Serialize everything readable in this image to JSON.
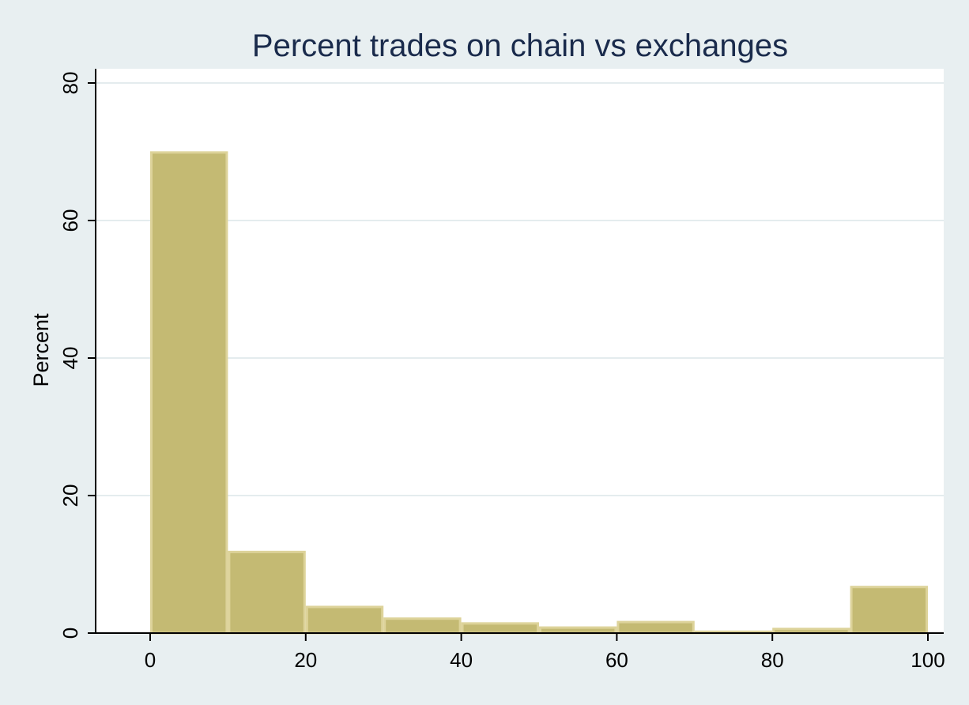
{
  "chart_data": {
    "type": "bar",
    "title": "Percent trades on chain vs exchanges",
    "xlabel": "",
    "ylabel": "Percent",
    "xlim": [
      -7,
      103
    ],
    "ylim": [
      0,
      80
    ],
    "xticks": [
      0,
      20,
      40,
      60,
      80,
      100
    ],
    "yticks": [
      0,
      20,
      40,
      60,
      80
    ],
    "grid": true,
    "bins": [
      {
        "start": 0,
        "end": 10,
        "value": 69.9
      },
      {
        "start": 10,
        "end": 20,
        "value": 11.8
      },
      {
        "start": 20,
        "end": 30,
        "value": 3.8
      },
      {
        "start": 30,
        "end": 40,
        "value": 2.1
      },
      {
        "start": 40,
        "end": 50,
        "value": 1.4
      },
      {
        "start": 50,
        "end": 60,
        "value": 0.8
      },
      {
        "start": 60,
        "end": 70,
        "value": 1.6
      },
      {
        "start": 70,
        "end": 80,
        "value": 0.2
      },
      {
        "start": 80,
        "end": 90,
        "value": 0.6
      },
      {
        "start": 90,
        "end": 100,
        "value": 6.7
      }
    ],
    "colors": {
      "bar_fill": "#c4ba73",
      "bar_stroke": "#ddd39a",
      "background": "#e8eff1",
      "plot_background": "#ffffff",
      "grid": "#e4ecee",
      "title": "#1a2b4c"
    }
  }
}
